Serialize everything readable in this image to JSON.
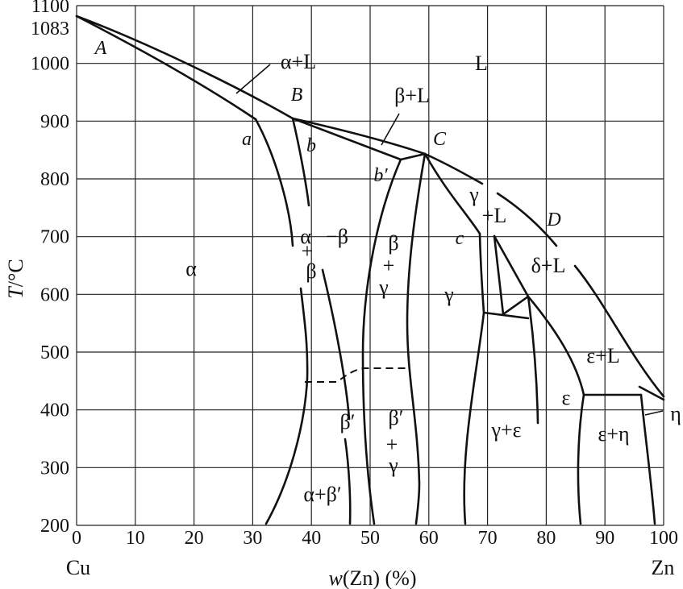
{
  "chart_data": {
    "type": "phase-diagram",
    "xlabel": "w(Zn) (%)",
    "ylabel": "T/°C",
    "x_ticks": [
      "0",
      "10",
      "20",
      "30",
      "40",
      "50",
      "60",
      "70",
      "80",
      "90",
      "100"
    ],
    "y_ticks": [
      "200",
      "300",
      "400",
      "500",
      "600",
      "700",
      "800",
      "900",
      "1000",
      "1100"
    ],
    "y_special_tick": "1083",
    "x_end_labels": {
      "left": "Cu",
      "right": "Zn"
    },
    "xlim": [
      0,
      100
    ],
    "ylim": [
      200,
      1100
    ],
    "point_labels": [
      "A",
      "B",
      "C",
      "D",
      "a",
      "b",
      "b′",
      "c"
    ],
    "phase_labels": [
      "α+L",
      "L",
      "β+L",
      "α",
      "α",
      "+",
      "β",
      "−β",
      "β",
      "+",
      "γ",
      "γ",
      "γ",
      "+L",
      "δ+L",
      "ε+L",
      "ε",
      "η",
      "β′",
      "β′",
      "+",
      "γ",
      "γ+ε",
      "ε+η",
      "α+β′"
    ]
  }
}
